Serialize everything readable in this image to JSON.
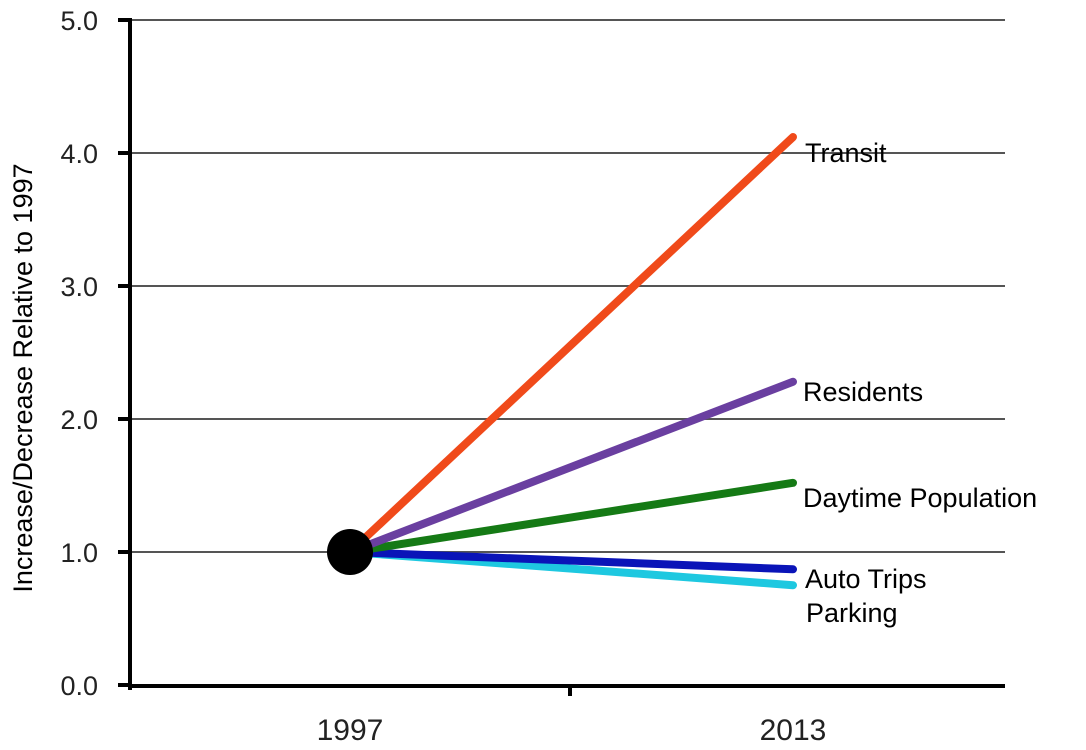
{
  "chart_data": {
    "type": "line",
    "title": "",
    "xlabel": "",
    "ylabel": "Increase/Decrease Relative to 1997",
    "x": [
      "1997",
      "2013"
    ],
    "ylim": [
      0,
      5
    ],
    "yticks": [
      "0.0",
      "1.0",
      "2.0",
      "3.0",
      "4.0",
      "5.0"
    ],
    "grid": true,
    "origin_marker": {
      "x": "1997",
      "y": 1.0
    },
    "series": [
      {
        "name": "Transit",
        "values": [
          1.0,
          4.12
        ],
        "color": "#f04a1a"
      },
      {
        "name": "Residents",
        "values": [
          1.0,
          2.28
        ],
        "color": "#6a3fa0"
      },
      {
        "name": "Daytime Population",
        "values": [
          1.0,
          1.52
        ],
        "color": "#157a15"
      },
      {
        "name": "Auto Trips",
        "values": [
          1.0,
          0.87
        ],
        "color": "#0a14b8"
      },
      {
        "name": "Parking",
        "values": [
          1.0,
          0.75
        ],
        "color": "#1ec8e0"
      }
    ]
  }
}
